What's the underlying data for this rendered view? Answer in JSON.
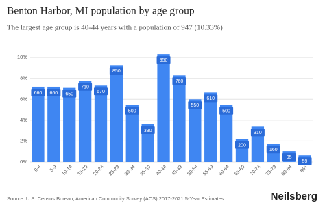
{
  "chart_data": {
    "type": "bar",
    "title": "Benton Harbor, MI population by age group",
    "subtitle": "The largest age group is 40-44 years with a population of 947 (10.33%)",
    "categories": [
      "0-4",
      "5-9",
      "10-14",
      "15-19",
      "20-24",
      "25-29",
      "30-34",
      "35-39",
      "40-44",
      "45-49",
      "50-54",
      "55-59",
      "60-64",
      "65-69",
      "70-74",
      "75-79",
      "80-84",
      "85+"
    ],
    "values": [
      7.2,
      7.2,
      7.09,
      7.74,
      7.31,
      9.27,
      5.45,
      3.6,
      10.33,
      8.29,
      6.0,
      6.65,
      5.45,
      2.18,
      3.38,
      1.75,
      1.04,
      0.64
    ],
    "counts": [
      660,
      660,
      650,
      710,
      670,
      850,
      500,
      330,
      950,
      760,
      550,
      610,
      500,
      200,
      310,
      160,
      95,
      59
    ],
    "color": "#3f86f2",
    "ylim": [
      0,
      10.6
    ],
    "yticks": [
      {
        "value": 0,
        "label": "0%"
      },
      {
        "value": 2,
        "label": "2%"
      },
      {
        "value": 4,
        "label": "4%"
      },
      {
        "value": 6,
        "label": "6%"
      },
      {
        "value": 8,
        "label": "8%"
      },
      {
        "value": 10,
        "label": "10%"
      }
    ],
    "grid": true,
    "source": "Source: U.S. Census Bureau, American Community Survey (ACS) 2017-2021 5-Year Estimates",
    "brand": "Neilsberg"
  }
}
